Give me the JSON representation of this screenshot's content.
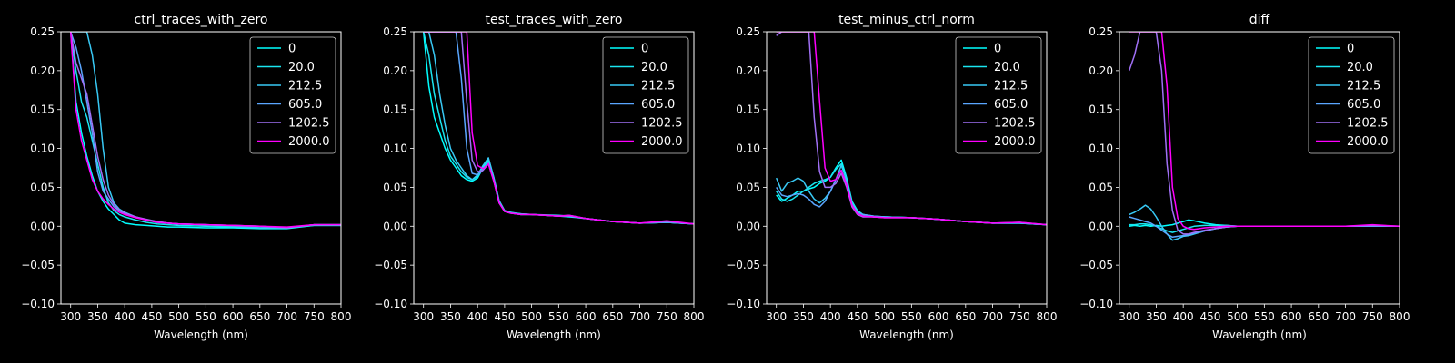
{
  "figure": {
    "background": "#000000",
    "foreground": "#ffffff",
    "legend_entries": [
      {
        "label": "0",
        "color": "#00ffff"
      },
      {
        "label": "20.0",
        "color": "#1ae5f0"
      },
      {
        "label": "212.5",
        "color": "#38c9f5"
      },
      {
        "label": "605.0",
        "color": "#5aa6ff"
      },
      {
        "label": "1202.5",
        "color": "#a070f5"
      },
      {
        "label": "2000.0",
        "color": "#ff00ff"
      }
    ]
  },
  "chart_data": [
    {
      "type": "line",
      "title": "ctrl_traces_with_zero",
      "xlabel": "Wavelength (nm)",
      "ylabel": "",
      "xlim": [
        282,
        800
      ],
      "ylim": [
        -0.1,
        0.25
      ],
      "xticks": [
        300,
        350,
        400,
        450,
        500,
        550,
        600,
        650,
        700,
        750,
        800
      ],
      "yticks": [
        -0.1,
        -0.05,
        0.0,
        0.05,
        0.1,
        0.15,
        0.2,
        0.25
      ],
      "ytick_labels": [
        "−0.10",
        "−0.05",
        "0.00",
        "0.05",
        "0.10",
        "0.15",
        "0.20",
        "0.25"
      ],
      "legend": "upper right",
      "grid": false,
      "x": [
        300,
        310,
        320,
        330,
        340,
        350,
        360,
        370,
        380,
        390,
        400,
        420,
        440,
        460,
        480,
        500,
        550,
        600,
        650,
        700,
        750,
        800
      ],
      "series": [
        {
          "name": "0",
          "values": [
            0.25,
            0.16,
            0.12,
            0.09,
            0.065,
            0.045,
            0.032,
            0.022,
            0.015,
            0.008,
            0.004,
            0.002,
            0.001,
            0.0,
            -0.001,
            -0.001,
            -0.002,
            -0.002,
            -0.003,
            -0.003,
            0.001,
            0.001
          ]
        },
        {
          "name": "20.0",
          "values": [
            0.25,
            0.2,
            0.16,
            0.14,
            0.11,
            0.08,
            0.05,
            0.03,
            0.02,
            0.015,
            0.012,
            0.008,
            0.005,
            0.003,
            0.002,
            0.001,
            0.0,
            -0.001,
            -0.002,
            -0.002,
            0.001,
            0.001
          ]
        },
        {
          "name": "212.5",
          "values": [
            0.25,
            0.25,
            0.25,
            0.25,
            0.22,
            0.17,
            0.1,
            0.05,
            0.03,
            0.022,
            0.018,
            0.012,
            0.008,
            0.005,
            0.004,
            0.003,
            0.002,
            0.0,
            -0.002,
            -0.002,
            0.002,
            0.002
          ]
        },
        {
          "name": "605.0",
          "values": [
            0.25,
            0.23,
            0.2,
            0.16,
            0.12,
            0.07,
            0.045,
            0.035,
            0.025,
            0.02,
            0.016,
            0.012,
            0.008,
            0.006,
            0.004,
            0.003,
            0.002,
            0.001,
            0.0,
            -0.002,
            0.002,
            0.002
          ]
        },
        {
          "name": "1202.5",
          "values": [
            0.25,
            0.21,
            0.19,
            0.17,
            0.13,
            0.09,
            0.06,
            0.04,
            0.028,
            0.021,
            0.017,
            0.012,
            0.009,
            0.006,
            0.004,
            0.003,
            0.002,
            0.001,
            0.0,
            -0.002,
            0.002,
            0.002
          ]
        },
        {
          "name": "2000.0",
          "values": [
            0.25,
            0.15,
            0.11,
            0.085,
            0.06,
            0.045,
            0.035,
            0.028,
            0.022,
            0.018,
            0.015,
            0.011,
            0.008,
            0.005,
            0.004,
            0.003,
            0.002,
            0.001,
            0.0,
            -0.001,
            0.002,
            0.002
          ]
        }
      ]
    },
    {
      "type": "line",
      "title": "test_traces_with_zero",
      "xlabel": "Wavelength (nm)",
      "ylabel": "",
      "xlim": [
        282,
        800
      ],
      "ylim": [
        -0.1,
        0.25
      ],
      "xticks": [
        300,
        350,
        400,
        450,
        500,
        550,
        600,
        650,
        700,
        750,
        800
      ],
      "yticks": [
        -0.1,
        -0.05,
        0.0,
        0.05,
        0.1,
        0.15,
        0.2,
        0.25
      ],
      "ytick_labels": [
        "−0.10",
        "−0.05",
        "0.00",
        "0.05",
        "0.10",
        "0.15",
        "0.20",
        "0.25"
      ],
      "legend": "upper right",
      "grid": false,
      "x": [
        300,
        310,
        320,
        330,
        340,
        350,
        360,
        370,
        380,
        390,
        400,
        410,
        420,
        430,
        440,
        450,
        460,
        480,
        500,
        550,
        570,
        600,
        650,
        700,
        750,
        800
      ],
      "series": [
        {
          "name": "0",
          "values": [
            0.25,
            0.18,
            0.14,
            0.12,
            0.1,
            0.085,
            0.075,
            0.065,
            0.06,
            0.058,
            0.062,
            0.075,
            0.085,
            0.06,
            0.03,
            0.02,
            0.018,
            0.015,
            0.015,
            0.013,
            0.012,
            0.01,
            0.006,
            0.004,
            0.005,
            0.003
          ]
        },
        {
          "name": "20.0",
          "values": [
            0.25,
            0.22,
            0.17,
            0.14,
            0.11,
            0.09,
            0.08,
            0.07,
            0.063,
            0.06,
            0.064,
            0.076,
            0.087,
            0.062,
            0.032,
            0.02,
            0.018,
            0.016,
            0.015,
            0.013,
            0.014,
            0.01,
            0.006,
            0.004,
            0.005,
            0.003
          ]
        },
        {
          "name": "212.5",
          "values": [
            0.25,
            0.25,
            0.22,
            0.17,
            0.13,
            0.1,
            0.085,
            0.075,
            0.065,
            0.06,
            0.066,
            0.078,
            0.088,
            0.063,
            0.033,
            0.02,
            0.017,
            0.016,
            0.015,
            0.014,
            0.013,
            0.01,
            0.006,
            0.004,
            0.005,
            0.003
          ]
        },
        {
          "name": "605.0",
          "values": [
            0.25,
            0.25,
            0.25,
            0.25,
            0.25,
            0.25,
            0.25,
            0.19,
            0.1,
            0.068,
            0.066,
            0.072,
            0.082,
            0.06,
            0.03,
            0.019,
            0.017,
            0.015,
            0.015,
            0.013,
            0.013,
            0.01,
            0.006,
            0.004,
            0.005,
            0.003
          ]
        },
        {
          "name": "1202.5",
          "values": [
            0.25,
            0.25,
            0.25,
            0.25,
            0.25,
            0.25,
            0.25,
            0.25,
            0.16,
            0.085,
            0.07,
            0.072,
            0.08,
            0.058,
            0.03,
            0.019,
            0.017,
            0.015,
            0.015,
            0.013,
            0.013,
            0.01,
            0.006,
            0.004,
            0.006,
            0.003
          ]
        },
        {
          "name": "2000.0",
          "values": [
            0.25,
            0.25,
            0.25,
            0.25,
            0.25,
            0.25,
            0.25,
            0.25,
            0.25,
            0.12,
            0.078,
            0.074,
            0.08,
            0.058,
            0.03,
            0.019,
            0.017,
            0.015,
            0.015,
            0.013,
            0.014,
            0.01,
            0.006,
            0.004,
            0.007,
            0.003
          ]
        }
      ]
    },
    {
      "type": "line",
      "title": "test_minus_ctrl_norm",
      "xlabel": "Wavelength (nm)",
      "ylabel": "",
      "xlim": [
        282,
        800
      ],
      "ylim": [
        -0.1,
        0.25
      ],
      "xticks": [
        300,
        350,
        400,
        450,
        500,
        550,
        600,
        650,
        700,
        750,
        800
      ],
      "yticks": [
        -0.1,
        -0.05,
        0.0,
        0.05,
        0.1,
        0.15,
        0.2,
        0.25
      ],
      "ytick_labels": [
        "−0.10",
        "−0.05",
        "0.00",
        "0.05",
        "0.10",
        "0.15",
        "0.20",
        "0.25"
      ],
      "legend": "upper right",
      "grid": false,
      "x": [
        300,
        310,
        320,
        330,
        340,
        350,
        360,
        370,
        380,
        390,
        400,
        410,
        420,
        430,
        440,
        450,
        460,
        480,
        500,
        550,
        600,
        650,
        700,
        750,
        800
      ],
      "series": [
        {
          "name": "0",
          "values": [
            0.04,
            0.032,
            0.036,
            0.04,
            0.045,
            0.045,
            0.048,
            0.05,
            0.055,
            0.058,
            0.063,
            0.075,
            0.085,
            0.062,
            0.032,
            0.02,
            0.015,
            0.012,
            0.012,
            0.011,
            0.009,
            0.006,
            0.004,
            0.004,
            0.002
          ]
        },
        {
          "name": "20.0",
          "values": [
            0.045,
            0.035,
            0.032,
            0.035,
            0.04,
            0.045,
            0.05,
            0.055,
            0.058,
            0.06,
            0.063,
            0.073,
            0.08,
            0.058,
            0.03,
            0.02,
            0.015,
            0.012,
            0.012,
            0.011,
            0.009,
            0.006,
            0.004,
            0.004,
            0.002
          ]
        },
        {
          "name": "212.5",
          "values": [
            0.062,
            0.045,
            0.055,
            0.058,
            0.062,
            0.058,
            0.045,
            0.035,
            0.03,
            0.036,
            0.045,
            0.06,
            0.078,
            0.06,
            0.03,
            0.018,
            0.015,
            0.013,
            0.012,
            0.011,
            0.009,
            0.006,
            0.004,
            0.004,
            0.002
          ]
        },
        {
          "name": "605.0",
          "values": [
            0.05,
            0.04,
            0.038,
            0.04,
            0.042,
            0.04,
            0.035,
            0.028,
            0.025,
            0.032,
            0.045,
            0.06,
            0.072,
            0.055,
            0.028,
            0.018,
            0.015,
            0.013,
            0.012,
            0.011,
            0.009,
            0.006,
            0.004,
            0.004,
            0.002
          ]
        },
        {
          "name": "1202.5",
          "values": [
            0.245,
            0.25,
            0.25,
            0.25,
            0.25,
            0.25,
            0.25,
            0.14,
            0.07,
            0.05,
            0.05,
            0.055,
            0.068,
            0.05,
            0.025,
            0.015,
            0.012,
            0.012,
            0.011,
            0.011,
            0.009,
            0.006,
            0.004,
            0.005,
            0.002
          ]
        },
        {
          "name": "2000.0",
          "values": [
            0.25,
            0.25,
            0.25,
            0.25,
            0.25,
            0.25,
            0.25,
            0.25,
            0.16,
            0.075,
            0.058,
            0.06,
            0.072,
            0.053,
            0.027,
            0.016,
            0.013,
            0.012,
            0.011,
            0.011,
            0.009,
            0.006,
            0.004,
            0.005,
            0.002
          ]
        }
      ]
    },
    {
      "type": "line",
      "title": "diff",
      "xlabel": "Wavelength (nm)",
      "ylabel": "",
      "xlim": [
        282,
        800
      ],
      "ylim": [
        -0.1,
        0.25
      ],
      "xticks": [
        300,
        350,
        400,
        450,
        500,
        550,
        600,
        650,
        700,
        750,
        800
      ],
      "yticks": [
        -0.1,
        -0.05,
        0.0,
        0.05,
        0.1,
        0.15,
        0.2,
        0.25
      ],
      "ytick_labels": [
        "−0.10",
        "−0.05",
        "0.00",
        "0.05",
        "0.10",
        "0.15",
        "0.20",
        "0.25"
      ],
      "legend": "upper right",
      "grid": false,
      "x": [
        300,
        310,
        320,
        330,
        340,
        350,
        360,
        370,
        380,
        390,
        400,
        410,
        420,
        440,
        460,
        480,
        500,
        550,
        600,
        650,
        700,
        750,
        800
      ],
      "series": [
        {
          "name": "0",
          "values": [
            0.0,
            0.001,
            0.0,
            0.001,
            0.0,
            0.001,
            0.0,
            0.001,
            0.002,
            0.004,
            0.006,
            0.008,
            0.007,
            0.004,
            0.002,
            0.001,
            0.0,
            0.0,
            0.0,
            0.0,
            0.0,
            0.0,
            0.0
          ]
        },
        {
          "name": "20.0",
          "values": [
            0.002,
            0.002,
            0.003,
            0.003,
            0.002,
            0.0,
            -0.003,
            -0.006,
            -0.008,
            -0.006,
            -0.004,
            -0.002,
            0.0,
            0.001,
            0.001,
            0.001,
            0.0,
            0.0,
            0.0,
            0.0,
            0.0,
            0.0,
            0.0
          ]
        },
        {
          "name": "212.5",
          "values": [
            0.015,
            0.018,
            0.022,
            0.027,
            0.022,
            0.012,
            0.0,
            -0.01,
            -0.018,
            -0.016,
            -0.013,
            -0.012,
            -0.01,
            -0.006,
            -0.003,
            -0.001,
            0.0,
            0.0,
            0.0,
            0.0,
            0.0,
            0.0,
            0.0
          ]
        },
        {
          "name": "605.0",
          "values": [
            0.012,
            0.01,
            0.008,
            0.006,
            0.004,
            0.0,
            -0.005,
            -0.01,
            -0.014,
            -0.013,
            -0.012,
            -0.011,
            -0.009,
            -0.006,
            -0.003,
            -0.001,
            0.0,
            0.0,
            0.0,
            0.0,
            0.0,
            0.0,
            0.0
          ]
        },
        {
          "name": "1202.5",
          "values": [
            0.2,
            0.22,
            0.25,
            0.25,
            0.25,
            0.25,
            0.2,
            0.08,
            0.02,
            -0.005,
            -0.01,
            -0.01,
            -0.008,
            -0.005,
            -0.003,
            -0.001,
            0.0,
            0.0,
            0.0,
            0.0,
            0.0,
            0.001,
            0.0
          ]
        },
        {
          "name": "2000.0",
          "values": [
            0.25,
            0.25,
            0.25,
            0.25,
            0.25,
            0.25,
            0.25,
            0.18,
            0.05,
            0.01,
            0.0,
            -0.003,
            -0.004,
            -0.002,
            -0.001,
            0.0,
            0.0,
            0.0,
            0.0,
            0.0,
            0.0,
            0.002,
            0.0
          ]
        }
      ]
    }
  ]
}
